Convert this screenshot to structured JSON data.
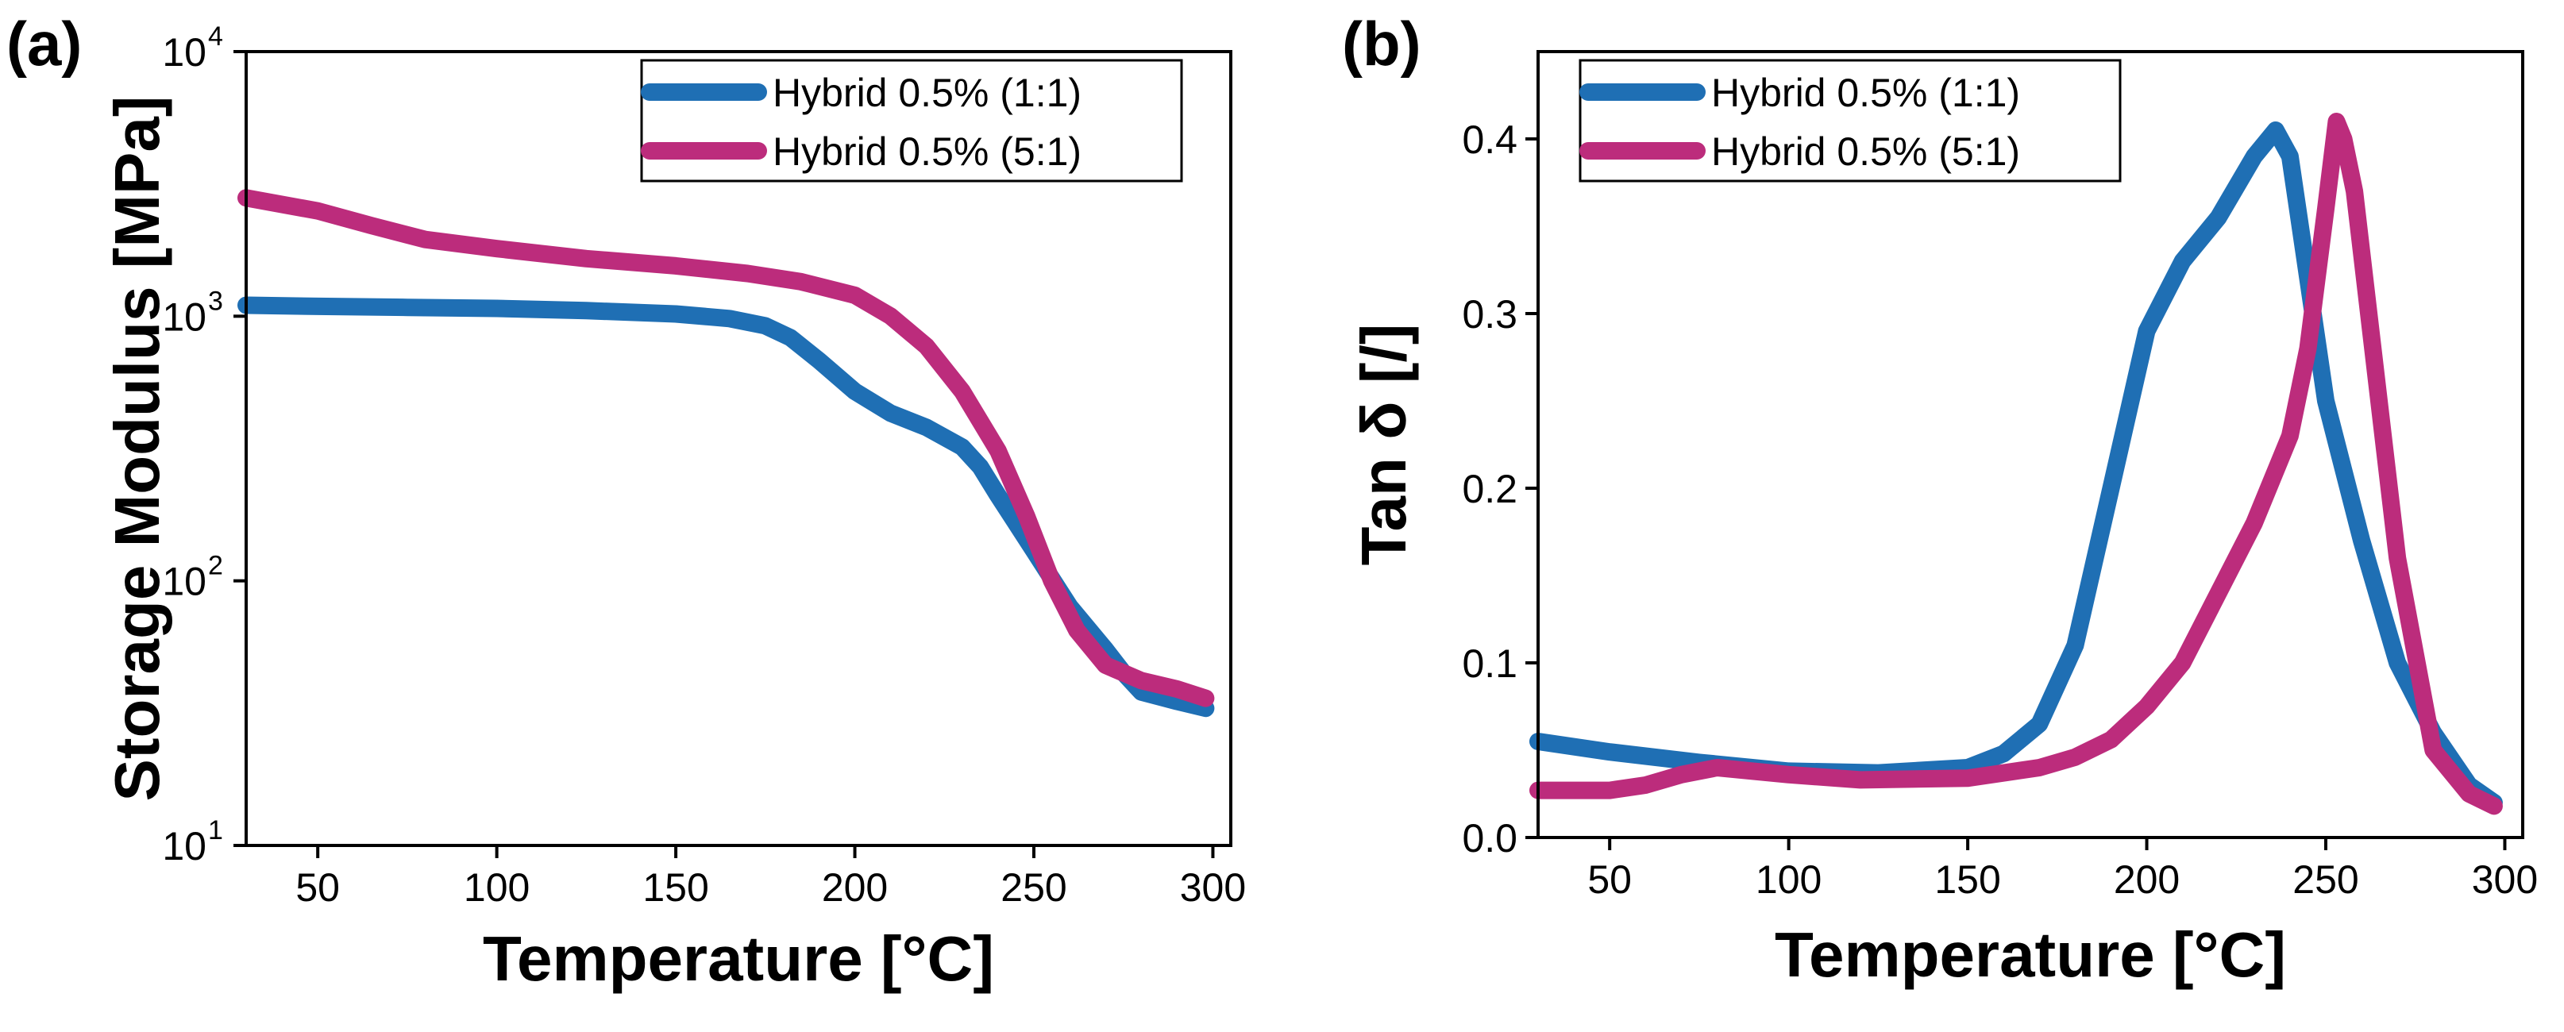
{
  "colors": {
    "series_blue": "#1f6fb4",
    "series_magenta": "#bc2c7c"
  },
  "chart_data": [
    {
      "panel": "(a)",
      "type": "line",
      "xlabel": "Temperature [°C]",
      "ylabel": "Storage Modulus [MPa]",
      "xlim": [
        30,
        305
      ],
      "ylim": [
        10,
        10000
      ],
      "yscale": "log",
      "xticks": [
        50,
        100,
        150,
        200,
        250,
        300
      ],
      "xtick_labels": [
        "50",
        "100",
        "150",
        "200",
        "250",
        "300"
      ],
      "yticks": [
        10,
        100,
        1000,
        10000
      ],
      "ytick_labels": [
        {
          "base": "10",
          "exp": "1"
        },
        {
          "base": "10",
          "exp": "2"
        },
        {
          "base": "10",
          "exp": "3"
        },
        {
          "base": "10",
          "exp": "4"
        }
      ],
      "grid": false,
      "legend_position": "top-right",
      "series": [
        {
          "name": "Hybrid 0.5% (1:1)",
          "color": "#1f6fb4",
          "x": [
            30,
            50,
            75,
            100,
            125,
            150,
            165,
            175,
            182,
            190,
            200,
            210,
            220,
            230,
            235,
            240,
            250,
            260,
            270,
            275,
            280,
            290,
            298
          ],
          "y": [
            1100,
            1090,
            1080,
            1070,
            1050,
            1020,
            980,
            920,
            830,
            680,
            520,
            430,
            380,
            320,
            270,
            210,
            130,
            80,
            55,
            45,
            38,
            35,
            33
          ]
        },
        {
          "name": "Hybrid 0.5% (5:1)",
          "color": "#bc2c7c",
          "x": [
            30,
            50,
            65,
            80,
            100,
            125,
            150,
            170,
            185,
            200,
            210,
            220,
            230,
            240,
            248,
            255,
            262,
            270,
            280,
            290,
            298
          ],
          "y": [
            2800,
            2500,
            2200,
            1950,
            1800,
            1650,
            1550,
            1450,
            1350,
            1200,
            1000,
            770,
            520,
            310,
            175,
            100,
            65,
            48,
            42,
            39,
            36
          ]
        }
      ]
    },
    {
      "panel": "(b)",
      "type": "line",
      "xlabel": "Temperature [°C]",
      "ylabel": "Tan δ [/]",
      "xlim": [
        30,
        305
      ],
      "ylim": [
        0,
        0.45
      ],
      "yscale": "linear",
      "xticks": [
        50,
        100,
        150,
        200,
        250,
        300
      ],
      "xtick_labels": [
        "50",
        "100",
        "150",
        "200",
        "250",
        "300"
      ],
      "yticks": [
        0.0,
        0.1,
        0.2,
        0.3,
        0.4
      ],
      "ytick_labels": [
        "0.0",
        "0.1",
        "0.2",
        "0.3",
        "0.4"
      ],
      "grid": false,
      "legend_position": "top-left",
      "series": [
        {
          "name": "Hybrid 0.5% (1:1)",
          "color": "#1f6fb4",
          "x": [
            30,
            50,
            75,
            100,
            125,
            150,
            160,
            170,
            180,
            190,
            200,
            210,
            220,
            230,
            236,
            240,
            245,
            250,
            260,
            270,
            280,
            290,
            297
          ],
          "y": [
            0.055,
            0.049,
            0.043,
            0.038,
            0.037,
            0.04,
            0.048,
            0.065,
            0.11,
            0.2,
            0.29,
            0.33,
            0.355,
            0.39,
            0.405,
            0.39,
            0.32,
            0.25,
            0.17,
            0.1,
            0.06,
            0.03,
            0.02
          ]
        },
        {
          "name": "Hybrid 0.5% (5:1)",
          "color": "#bc2c7c",
          "x": [
            30,
            50,
            60,
            70,
            80,
            90,
            100,
            120,
            150,
            170,
            180,
            190,
            200,
            210,
            220,
            230,
            240,
            245,
            250,
            253,
            255,
            258,
            262,
            270,
            280,
            290,
            297
          ],
          "y": [
            0.027,
            0.027,
            0.03,
            0.036,
            0.04,
            0.038,
            0.036,
            0.033,
            0.034,
            0.04,
            0.046,
            0.056,
            0.075,
            0.1,
            0.14,
            0.18,
            0.23,
            0.28,
            0.36,
            0.41,
            0.4,
            0.37,
            0.3,
            0.16,
            0.05,
            0.025,
            0.018
          ]
        }
      ]
    }
  ]
}
